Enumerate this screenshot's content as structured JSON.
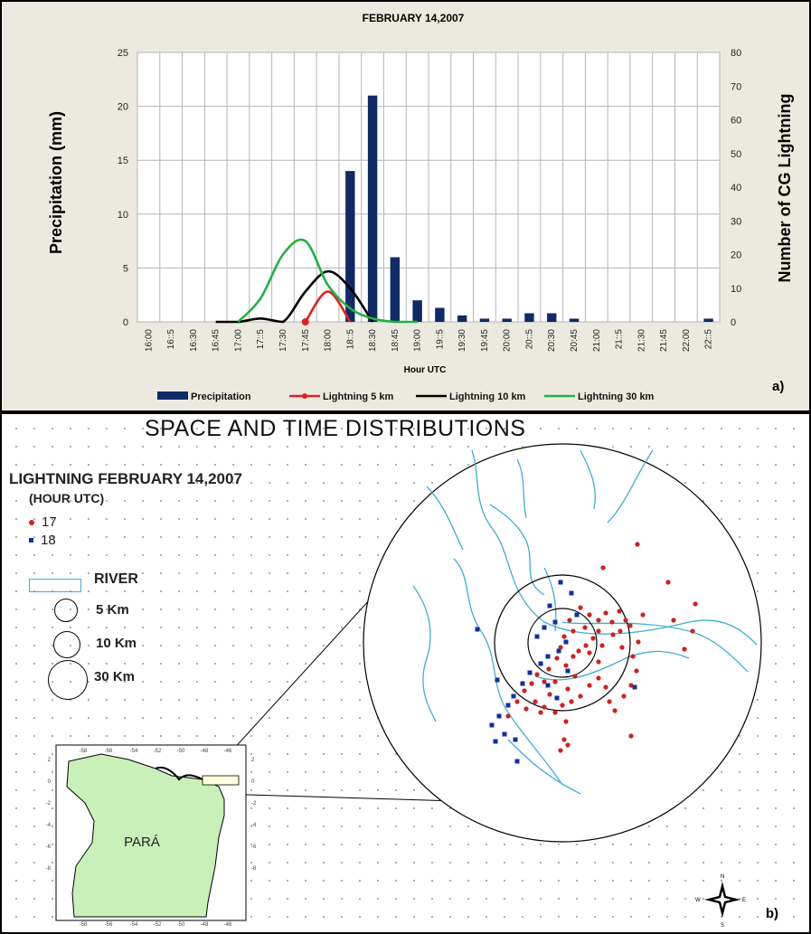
{
  "chart_data": {
    "type": "bar",
    "title": "FEBRUARY  14,2007",
    "xlabel": "Hour UTC",
    "ylabel": "Precipitation (mm)",
    "y2label": "Number of CG Lightning",
    "ylim": [
      0,
      25
    ],
    "y2lim": [
      0,
      80
    ],
    "yticks": [
      "0",
      "5",
      "10",
      "15",
      "20",
      "25"
    ],
    "y2ticks": [
      "0",
      "10",
      "20",
      "30",
      "40",
      "50",
      "60",
      "70",
      "80"
    ],
    "categories": [
      "16:00",
      "16:15",
      "16:30",
      "16:45",
      "17:00",
      "17:15",
      "17:30",
      "17:45",
      "18:00",
      "18:15",
      "18:30",
      "18:45",
      "19:00",
      "19:15",
      "19:30",
      "19:45",
      "20:00",
      "20:15",
      "20:30",
      "20:45",
      "21:00",
      "21:15",
      "21:30",
      "21:45",
      "22:00",
      "22:15"
    ],
    "tick_labels": [
      "16:00",
      "16::5",
      "16:30",
      "16:45",
      "17:00",
      "17::5",
      "17:30",
      "17:45",
      "18:00",
      "18::5",
      "18:30",
      "18:45",
      "19:00",
      "19::5",
      "19:30",
      "19:45",
      "20:00",
      "20::5",
      "20:30",
      "20:45",
      "21:00",
      "21::5",
      "21:30",
      "21:45",
      "22:00",
      "22::5"
    ],
    "grid": true,
    "legend_position": "bottom",
    "panel_label": "a)",
    "series": [
      {
        "name": "Precipitation",
        "kind": "bar",
        "axis": "left",
        "color": "#0f2a66",
        "values": [
          0,
          0,
          0,
          0,
          0,
          0,
          0,
          0,
          0,
          14,
          21,
          6,
          2,
          1.3,
          0.6,
          0.3,
          0.3,
          0.8,
          0.8,
          0.3,
          0,
          0,
          0,
          0,
          0,
          0.3
        ]
      },
      {
        "name": "Lightning 5 km",
        "kind": "line",
        "axis": "right",
        "color": "#e02020",
        "values": [
          null,
          null,
          null,
          null,
          null,
          null,
          null,
          0,
          9,
          0,
          null,
          null,
          null,
          null,
          null,
          null,
          null,
          null,
          null,
          null,
          null,
          null,
          null,
          null,
          null,
          null
        ]
      },
      {
        "name": "Lightning 10 km",
        "kind": "line",
        "axis": "right",
        "color": "#000000",
        "values": [
          null,
          null,
          null,
          0,
          0,
          1,
          0,
          9,
          15,
          10,
          0,
          null,
          null,
          null,
          null,
          null,
          null,
          null,
          null,
          null,
          null,
          null,
          null,
          null,
          null,
          null
        ]
      },
      {
        "name": "Lightning 30 km",
        "kind": "line",
        "axis": "right",
        "color": "#22b040",
        "values": [
          null,
          null,
          null,
          null,
          0,
          7,
          20,
          24,
          11,
          4,
          1,
          0,
          0,
          null,
          null,
          null,
          null,
          null,
          null,
          null,
          null,
          null,
          null,
          null,
          null,
          null
        ]
      }
    ]
  },
  "map": {
    "title": "SPACE AND TIME DISTRIBUTIONS",
    "legend_title": "LIGHTNING  FEBRUARY 14,2007",
    "legend_sub": "(HOUR UTC)",
    "hours": [
      {
        "label": "17",
        "color": "#d02020",
        "shape": "circle"
      },
      {
        "label": "18",
        "color": "#1030a0",
        "shape": "square"
      }
    ],
    "river_label": "RIVER",
    "river_color": "#3bb0d0",
    "radii": [
      "5 Km",
      "10 Km",
      "30 Km"
    ],
    "state_label": "PARÁ",
    "state_color": "#c8f0b8",
    "inset_x_ticks": [
      "-58",
      "-56",
      "-54",
      "-52",
      "-50",
      "-48",
      "-46"
    ],
    "inset_y_ticks": [
      "2",
      "0",
      "-2",
      "-4",
      "-6",
      "-8"
    ],
    "panel_label": "b)",
    "compass": [
      "N",
      "E",
      "S",
      "W"
    ]
  }
}
